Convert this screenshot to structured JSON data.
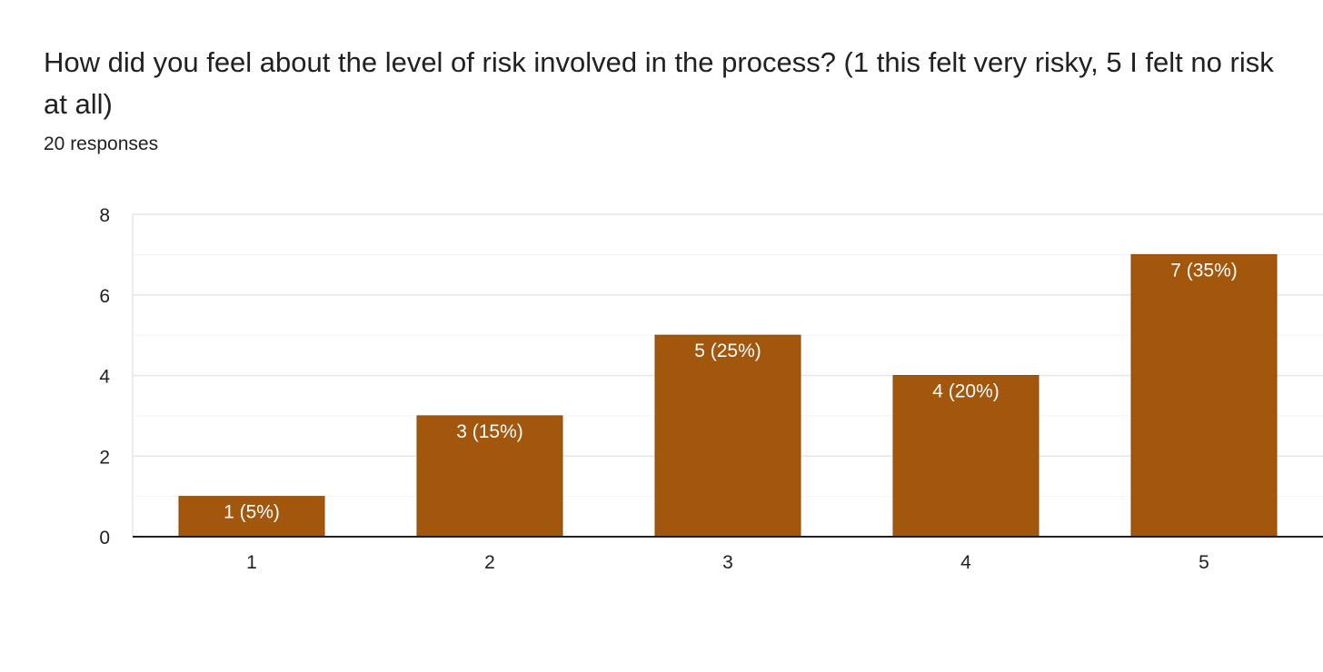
{
  "question": {
    "title": "How did you feel about the level of risk involved in the process? (1 this felt very risky, 5 I felt no risk at all)",
    "responses": "20 responses"
  },
  "colors": {
    "bar": "#a3570c",
    "bar_border": "#8f4a08",
    "grid": "#e6e6e6",
    "minor_grid": "#f2f2f2",
    "axis": "#202124",
    "data_label": "#ffffff"
  },
  "chart_data": {
    "type": "bar",
    "categories": [
      "1",
      "2",
      "3",
      "4",
      "5"
    ],
    "values": [
      1,
      3,
      5,
      4,
      7
    ],
    "data_labels": [
      "1 (5%)",
      "3 (15%)",
      "5 (25%)",
      "4 (20%)",
      "7 (35%)"
    ],
    "yticks": [
      0,
      2,
      4,
      6,
      8
    ],
    "ylim": [
      0,
      8
    ],
    "grid": true,
    "title": "",
    "xlabel": "",
    "ylabel": ""
  }
}
